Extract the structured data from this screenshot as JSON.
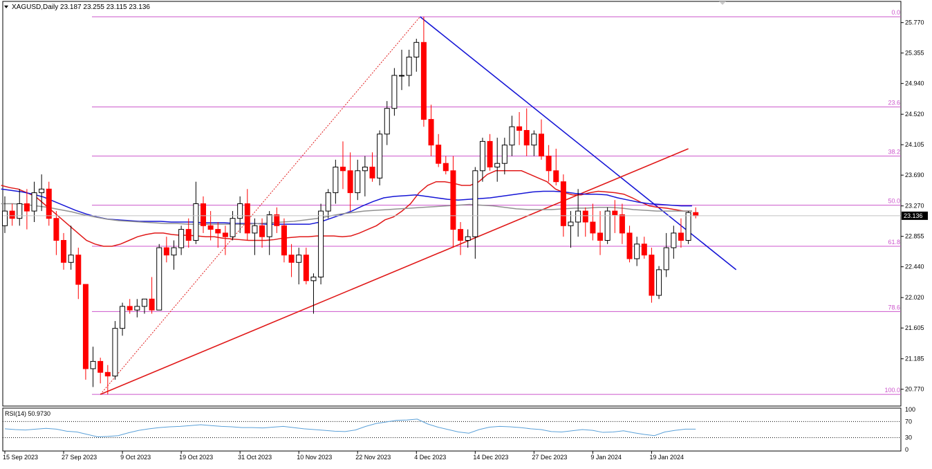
{
  "header": {
    "symbol_line": "XAGUSD,Daily  23.187 23.255 23.115 23.136",
    "menu_arrow_icon": "triangle-down-icon"
  },
  "rsi_panel": {
    "label": "RSI(14) 50.9730",
    "levels": [
      70,
      30
    ],
    "axis_labels": [
      "100",
      "70",
      "30",
      "0"
    ],
    "line_color": "#5aa0d8",
    "values": [
      52,
      50,
      49,
      51,
      53,
      51,
      46,
      44,
      38,
      32,
      33,
      35,
      42,
      48,
      52,
      55,
      57,
      58,
      60,
      62,
      60,
      58,
      57,
      55,
      55,
      54,
      56,
      58,
      55,
      52,
      50,
      48,
      46,
      45,
      49,
      58,
      65,
      69,
      73,
      74,
      76,
      64,
      56,
      50,
      44,
      41,
      50,
      56,
      58,
      57,
      55,
      52,
      50,
      45,
      44,
      47,
      50,
      48,
      43,
      44,
      47,
      42,
      38,
      35,
      44,
      48,
      51,
      51
    ]
  },
  "colors": {
    "bull": "#ffffff",
    "bear": "#ff0000",
    "wick": "#000000",
    "grid_border": "#000000",
    "fib_line": "#cc55cc",
    "fib_label": "#cc55cc",
    "trend_blue": "#1515d6",
    "trend_red": "#e01818",
    "ma_red": "#e01818",
    "ma_blue": "#1515d6",
    "ma_gray": "#909090",
    "price_tag_bg": "#000000",
    "price_tag_text": "#ffffff"
  },
  "chart_data": {
    "type": "candlestick",
    "symbol": "XAGUSD",
    "timeframe": "Daily",
    "last_price": "23.136",
    "ylim": [
      20.55,
      26.05
    ],
    "price_axis_labels": [
      "25.770",
      "25.355",
      "24.940",
      "24.520",
      "24.105",
      "23.690",
      "23.270",
      "22.855",
      "22.440",
      "22.020",
      "21.605",
      "21.185",
      "20.770"
    ],
    "x_axis_labels": [
      {
        "index": 0,
        "label": "15 Sep 2023"
      },
      {
        "index": 8,
        "label": "27 Sep 2023"
      },
      {
        "index": 16,
        "label": "9 Oct 2023"
      },
      {
        "index": 24,
        "label": "19 Oct 2023"
      },
      {
        "index": 32,
        "label": "31 Oct 2023"
      },
      {
        "index": 40,
        "label": "10 Nov 2023"
      },
      {
        "index": 48,
        "label": "22 Nov 2023"
      },
      {
        "index": 56,
        "label": "4 Dec 2023"
      },
      {
        "index": 64,
        "label": "14 Dec 2023"
      },
      {
        "index": 72,
        "label": "27 Dec 2023"
      },
      {
        "index": 80,
        "label": "9 Jan 2024"
      },
      {
        "index": 88,
        "label": "19 Jan 2024"
      }
    ],
    "candles": [
      [
        23.0,
        23.4,
        22.9,
        23.2
      ],
      [
        23.2,
        23.3,
        23.0,
        23.1
      ],
      [
        23.1,
        23.5,
        23.0,
        23.3
      ],
      [
        23.3,
        23.5,
        22.95,
        23.2
      ],
      [
        23.2,
        23.6,
        23.05,
        23.45
      ],
      [
        23.45,
        23.7,
        23.2,
        23.5
      ],
      [
        23.5,
        23.6,
        23.0,
        23.1
      ],
      [
        23.1,
        23.2,
        22.6,
        22.8
      ],
      [
        22.8,
        22.9,
        22.4,
        22.5
      ],
      [
        22.5,
        23.0,
        22.4,
        22.6
      ],
      [
        22.6,
        22.7,
        22.0,
        22.2
      ],
      [
        22.2,
        22.2,
        20.9,
        21.05
      ],
      [
        21.05,
        21.35,
        20.8,
        21.15
      ],
      [
        21.15,
        21.2,
        20.85,
        21.0
      ],
      [
        21.0,
        21.1,
        20.7,
        20.95
      ],
      [
        20.95,
        21.7,
        20.9,
        21.6
      ],
      [
        21.6,
        21.95,
        21.5,
        21.9
      ],
      [
        21.9,
        22.0,
        21.8,
        21.85
      ],
      [
        21.85,
        22.0,
        21.75,
        21.9
      ],
      [
        21.9,
        22.0,
        21.8,
        22.0
      ],
      [
        22.0,
        22.3,
        21.8,
        21.85
      ],
      [
        21.85,
        22.75,
        21.85,
        22.7
      ],
      [
        22.7,
        22.85,
        22.5,
        22.6
      ],
      [
        22.6,
        22.8,
        22.4,
        22.7
      ],
      [
        22.7,
        23.0,
        22.6,
        22.95
      ],
      [
        22.95,
        23.1,
        22.7,
        22.8
      ],
      [
        22.8,
        23.6,
        22.75,
        23.3
      ],
      [
        23.3,
        23.4,
        22.9,
        23.0
      ],
      [
        23.0,
        23.2,
        22.8,
        22.95
      ],
      [
        22.95,
        23.05,
        22.7,
        22.9
      ],
      [
        22.9,
        23.0,
        22.6,
        22.85
      ],
      [
        22.85,
        23.2,
        22.8,
        23.1
      ],
      [
        23.1,
        23.4,
        22.9,
        23.3
      ],
      [
        23.3,
        23.5,
        22.8,
        22.9
      ],
      [
        22.9,
        23.1,
        22.6,
        23.0
      ],
      [
        23.0,
        23.1,
        22.7,
        22.85
      ],
      [
        22.85,
        23.2,
        22.6,
        23.15
      ],
      [
        23.15,
        23.25,
        22.9,
        23.0
      ],
      [
        23.0,
        23.1,
        22.5,
        22.6
      ],
      [
        22.6,
        22.75,
        22.3,
        22.5
      ],
      [
        22.5,
        22.7,
        22.2,
        22.6
      ],
      [
        22.6,
        22.7,
        22.2,
        22.25
      ],
      [
        22.25,
        22.35,
        21.8,
        22.3
      ],
      [
        22.3,
        23.3,
        22.2,
        23.2
      ],
      [
        23.2,
        23.5,
        23.1,
        23.45
      ],
      [
        23.45,
        23.9,
        23.3,
        23.8
      ],
      [
        23.8,
        24.15,
        23.5,
        23.75
      ],
      [
        23.75,
        24.0,
        23.2,
        23.45
      ],
      [
        23.45,
        23.9,
        23.35,
        23.75
      ],
      [
        23.75,
        23.95,
        23.4,
        23.8
      ],
      [
        23.8,
        24.0,
        23.6,
        23.65
      ],
      [
        23.65,
        24.3,
        23.55,
        24.25
      ],
      [
        24.25,
        24.7,
        24.1,
        24.6
      ],
      [
        24.6,
        25.15,
        24.5,
        25.05
      ],
      [
        25.05,
        25.4,
        24.85,
        25.05
      ],
      [
        25.05,
        25.4,
        24.9,
        25.3
      ],
      [
        25.3,
        25.55,
        25.1,
        25.5
      ],
      [
        25.5,
        25.85,
        24.35,
        24.45
      ],
      [
        24.45,
        24.65,
        23.95,
        24.1
      ],
      [
        24.1,
        24.25,
        23.8,
        23.85
      ],
      [
        23.85,
        23.95,
        23.7,
        23.75
      ],
      [
        23.75,
        23.95,
        22.7,
        22.95
      ],
      [
        22.95,
        23.05,
        22.6,
        22.8
      ],
      [
        22.8,
        22.95,
        22.7,
        22.85
      ],
      [
        22.85,
        23.8,
        22.55,
        23.75
      ],
      [
        23.75,
        24.2,
        23.6,
        24.15
      ],
      [
        24.15,
        24.25,
        23.75,
        23.8
      ],
      [
        23.8,
        24.2,
        23.6,
        23.85
      ],
      [
        23.85,
        24.2,
        23.7,
        24.1
      ],
      [
        24.1,
        24.5,
        23.95,
        24.35
      ],
      [
        24.35,
        24.55,
        24.1,
        24.3
      ],
      [
        24.3,
        24.6,
        23.95,
        24.1
      ],
      [
        24.1,
        24.3,
        23.95,
        24.25
      ],
      [
        24.25,
        24.45,
        23.9,
        23.95
      ],
      [
        23.95,
        24.1,
        23.6,
        23.75
      ],
      [
        23.75,
        24.05,
        23.55,
        23.6
      ],
      [
        23.6,
        23.7,
        22.85,
        23.0
      ],
      [
        23.0,
        23.2,
        22.7,
        23.05
      ],
      [
        23.05,
        23.5,
        22.85,
        23.2
      ],
      [
        23.2,
        23.25,
        22.85,
        23.05
      ],
      [
        23.05,
        23.3,
        22.8,
        22.9
      ],
      [
        22.9,
        23.2,
        22.6,
        22.8
      ],
      [
        22.8,
        23.25,
        22.75,
        23.2
      ],
      [
        23.2,
        23.35,
        22.9,
        23.15
      ],
      [
        23.15,
        23.3,
        22.75,
        22.9
      ],
      [
        22.9,
        23.0,
        22.5,
        22.55
      ],
      [
        22.55,
        22.85,
        22.45,
        22.75
      ],
      [
        22.75,
        22.85,
        22.55,
        22.6
      ],
      [
        22.6,
        22.7,
        21.95,
        22.05
      ],
      [
        22.05,
        22.45,
        22.0,
        22.4
      ],
      [
        22.4,
        22.9,
        22.3,
        22.7
      ],
      [
        22.7,
        23.0,
        22.55,
        22.9
      ],
      [
        22.9,
        23.1,
        22.7,
        22.8
      ],
      [
        22.8,
        23.2,
        22.75,
        23.18
      ],
      [
        23.18,
        23.25,
        23.1,
        23.136
      ]
    ],
    "moving_averages": [
      {
        "color": "#e01818",
        "values": [
          23.55,
          23.52,
          23.5,
          23.45,
          23.4,
          23.3,
          23.2,
          23.1,
          23.0,
          22.9,
          22.8,
          22.75,
          22.72,
          22.72,
          22.75,
          22.8,
          22.85,
          22.88,
          22.9,
          22.9,
          22.88,
          22.87,
          22.87,
          22.86,
          22.85,
          22.85,
          22.83,
          22.82,
          22.81,
          22.8,
          22.8,
          22.8,
          22.81,
          22.83,
          22.84,
          22.85,
          22.85,
          22.86,
          22.86,
          22.86,
          22.85,
          22.86,
          22.9,
          22.95,
          23.0,
          23.08,
          23.12,
          23.2,
          23.3,
          23.45,
          23.55,
          23.6,
          23.6,
          23.58,
          23.55,
          23.55,
          23.6,
          23.7,
          23.75,
          23.75,
          23.75,
          23.75,
          23.7,
          23.65,
          23.6,
          23.5,
          23.45,
          23.42,
          23.42,
          23.45,
          23.47,
          23.46,
          23.45,
          23.43,
          23.38,
          23.32,
          23.27,
          23.25,
          23.24,
          23.22,
          23.2,
          23.2
        ]
      },
      {
        "color": "#1515d6",
        "values": [
          23.5,
          23.48,
          23.46,
          23.43,
          23.39,
          23.33,
          23.27,
          23.21,
          23.16,
          23.12,
          23.09,
          23.08,
          23.07,
          23.06,
          23.06,
          23.06,
          23.05,
          23.05,
          23.05,
          23.04,
          23.04,
          23.04,
          23.03,
          23.03,
          23.03,
          23.02,
          23.02,
          23.02,
          23.02,
          23.02,
          23.05,
          23.1,
          23.15,
          23.2,
          23.27,
          23.33,
          23.38,
          23.4,
          23.41,
          23.42,
          23.4,
          23.38,
          23.36,
          23.35,
          23.36,
          23.37,
          23.38,
          23.4,
          23.42,
          23.44,
          23.46,
          23.47,
          23.47,
          23.46,
          23.44,
          23.43,
          23.43,
          23.42,
          23.38,
          23.35,
          23.32,
          23.3,
          23.29,
          23.28,
          23.27,
          23.27
        ]
      },
      {
        "color": "#909090",
        "values": [
          23.3,
          23.3,
          23.29,
          23.27,
          23.25,
          23.22,
          23.19,
          23.15,
          23.12,
          23.09,
          23.07,
          23.06,
          23.05,
          23.04,
          23.03,
          23.03,
          23.02,
          23.02,
          23.02,
          23.02,
          23.02,
          23.02,
          23.03,
          23.04,
          23.05,
          23.06,
          23.08,
          23.1,
          23.13,
          23.16,
          23.18,
          23.2,
          23.21,
          23.22,
          23.23,
          23.24,
          23.25,
          23.26,
          23.27,
          23.28,
          23.29,
          23.28,
          23.27,
          23.25,
          23.23,
          23.22,
          23.22,
          23.22,
          23.23,
          23.24,
          23.24,
          23.25,
          23.25,
          23.24,
          23.22,
          23.21,
          23.2,
          23.2,
          23.2,
          23.2
        ]
      }
    ],
    "fibonacci": {
      "levels": [
        {
          "label": "0.0",
          "price": 25.85
        },
        {
          "label": "23.6",
          "price": 24.62
        },
        {
          "label": "38.2",
          "price": 23.95
        },
        {
          "label": "50.0",
          "price": 23.28
        },
        {
          "label": "61.8",
          "price": 22.72
        },
        {
          "label": "78.6",
          "price": 21.83
        },
        {
          "label": "100.0",
          "price": 20.7
        }
      ]
    },
    "trendlines": [
      {
        "name": "descending-trendline",
        "color": "#1515d6",
        "from": {
          "index": 56.5,
          "price": 25.85
        },
        "to": {
          "index": 99.5,
          "price": 22.4
        }
      },
      {
        "name": "ascending-trendline",
        "color": "#e01818",
        "from": {
          "index": 13,
          "price": 20.7
        },
        "to": {
          "index": 93,
          "price": 24.05
        }
      },
      {
        "name": "fib-anchor-dotted",
        "color": "#e01818",
        "dashed": true,
        "from": {
          "index": 13,
          "price": 20.7
        },
        "to": {
          "index": 56.5,
          "price": 25.85
        }
      }
    ]
  }
}
